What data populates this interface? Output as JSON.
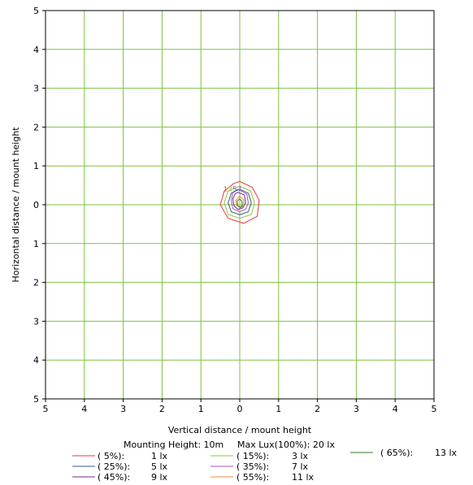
{
  "chart_data": {
    "type": "contour",
    "xlabel": "Vertical distance / mount height",
    "ylabel": "Horizontal distance / mount height",
    "xlim": [
      -5,
      5
    ],
    "ylim": [
      -5,
      5
    ],
    "x_ticks": [
      "5",
      "4",
      "3",
      "2",
      "1",
      "0",
      "1",
      "2",
      "3",
      "4",
      "5"
    ],
    "y_ticks": [
      "5",
      "4",
      "3",
      "2",
      "1",
      "0",
      "1",
      "2",
      "3",
      "4",
      "5"
    ],
    "grid": true,
    "grid_color": "#7cc242",
    "header": {
      "mounting": "Mounting Height: 10m",
      "max": "Max Lux(100%): 20 lx"
    },
    "contour_labels": [
      "1",
      "3",
      "5",
      "7"
    ],
    "series": [
      {
        "pct": "( 5%):",
        "lux": "1 lx",
        "color": "#e8383d",
        "points": [
          [
            0.0,
            0.6
          ],
          [
            0.32,
            0.45
          ],
          [
            0.5,
            0.12
          ],
          [
            0.45,
            -0.3
          ],
          [
            0.1,
            -0.48
          ],
          [
            -0.3,
            -0.35
          ],
          [
            -0.5,
            0.0
          ],
          [
            -0.4,
            0.35
          ],
          [
            -0.15,
            0.55
          ]
        ]
      },
      {
        "pct": "( 15%):",
        "lux": "3 lx",
        "color": "#8cc63f",
        "points": [
          [
            0.0,
            0.48
          ],
          [
            0.28,
            0.35
          ],
          [
            0.38,
            0.05
          ],
          [
            0.3,
            -0.25
          ],
          [
            0.0,
            -0.35
          ],
          [
            -0.3,
            -0.25
          ],
          [
            -0.4,
            0.05
          ],
          [
            -0.3,
            0.35
          ]
        ]
      },
      {
        "pct": "( 25%):",
        "lux": "5 lx",
        "color": "#3b5b8a",
        "points": [
          [
            0.0,
            0.4
          ],
          [
            0.22,
            0.3
          ],
          [
            0.3,
            0.05
          ],
          [
            0.22,
            -0.18
          ],
          [
            0.0,
            -0.26
          ],
          [
            -0.22,
            -0.18
          ],
          [
            -0.3,
            0.05
          ],
          [
            -0.22,
            0.3
          ]
        ]
      },
      {
        "pct": "( 35%):",
        "lux": "7 lx",
        "color": "#a35ab5",
        "points": [
          [
            -0.05,
            0.4
          ],
          [
            0.18,
            0.28
          ],
          [
            0.22,
            0.05
          ],
          [
            0.15,
            -0.12
          ],
          [
            0.0,
            -0.18
          ],
          [
            -0.18,
            -0.1
          ],
          [
            -0.22,
            0.12
          ],
          [
            -0.18,
            0.3
          ]
        ]
      },
      {
        "pct": "( 45%):",
        "lux": "9 lx",
        "color": "#6a2c91",
        "points": [
          [
            -0.05,
            0.32
          ],
          [
            0.12,
            0.25
          ],
          [
            0.15,
            0.05
          ],
          [
            0.08,
            -0.08
          ],
          [
            -0.05,
            -0.12
          ],
          [
            -0.15,
            -0.02
          ],
          [
            -0.18,
            0.15
          ],
          [
            -0.12,
            0.28
          ]
        ]
      },
      {
        "pct": "( 55%):",
        "lux": "11 lx",
        "color": "#f28c28",
        "points": [
          [
            0.0,
            0.22
          ],
          [
            0.1,
            0.12
          ],
          [
            0.1,
            -0.02
          ],
          [
            0.02,
            -0.08
          ],
          [
            -0.08,
            -0.02
          ],
          [
            -0.1,
            0.12
          ]
        ]
      },
      {
        "pct": "( 65%):",
        "lux": "13 lx",
        "color": "#2e7d32",
        "points": [
          [
            0.0,
            0.15
          ],
          [
            0.06,
            0.08
          ],
          [
            0.06,
            -0.03
          ],
          [
            0.0,
            -0.06
          ],
          [
            -0.06,
            -0.02
          ],
          [
            -0.06,
            0.1
          ]
        ]
      }
    ]
  }
}
